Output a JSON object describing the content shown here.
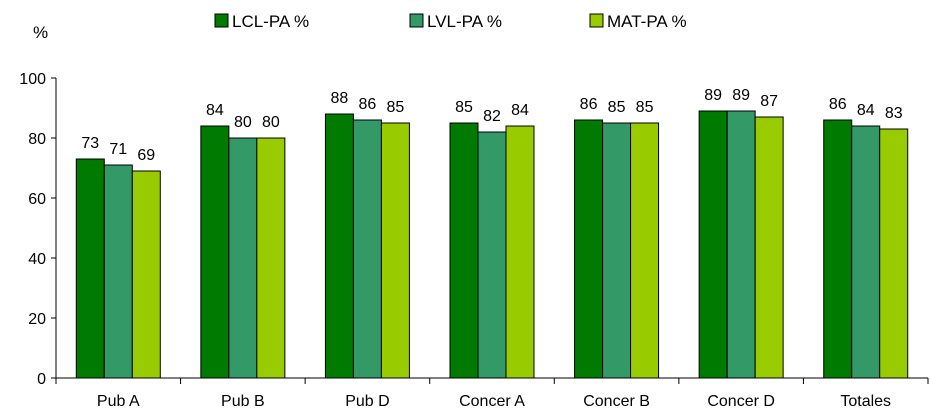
{
  "chart_data": {
    "type": "bar",
    "ylabel": "%",
    "ylim": [
      0,
      100
    ],
    "yticks": [
      0,
      20,
      40,
      60,
      80,
      100
    ],
    "grid": false,
    "legend_position": "top",
    "categories": [
      "Pub A",
      "Pub B",
      "Pub D",
      "Concer A",
      "Concer B",
      "Concer D",
      "Totales"
    ],
    "series": [
      {
        "name": "LCL-PA %",
        "color": "#007a00",
        "values": [
          73,
          84,
          88,
          85,
          86,
          89,
          86
        ]
      },
      {
        "name": "LVL-PA %",
        "color": "#339966",
        "values": [
          71,
          80,
          86,
          82,
          85,
          89,
          84
        ]
      },
      {
        "name": "MAT-PA %",
        "color": "#99cc00",
        "values": [
          69,
          80,
          85,
          84,
          85,
          87,
          83
        ]
      }
    ]
  }
}
